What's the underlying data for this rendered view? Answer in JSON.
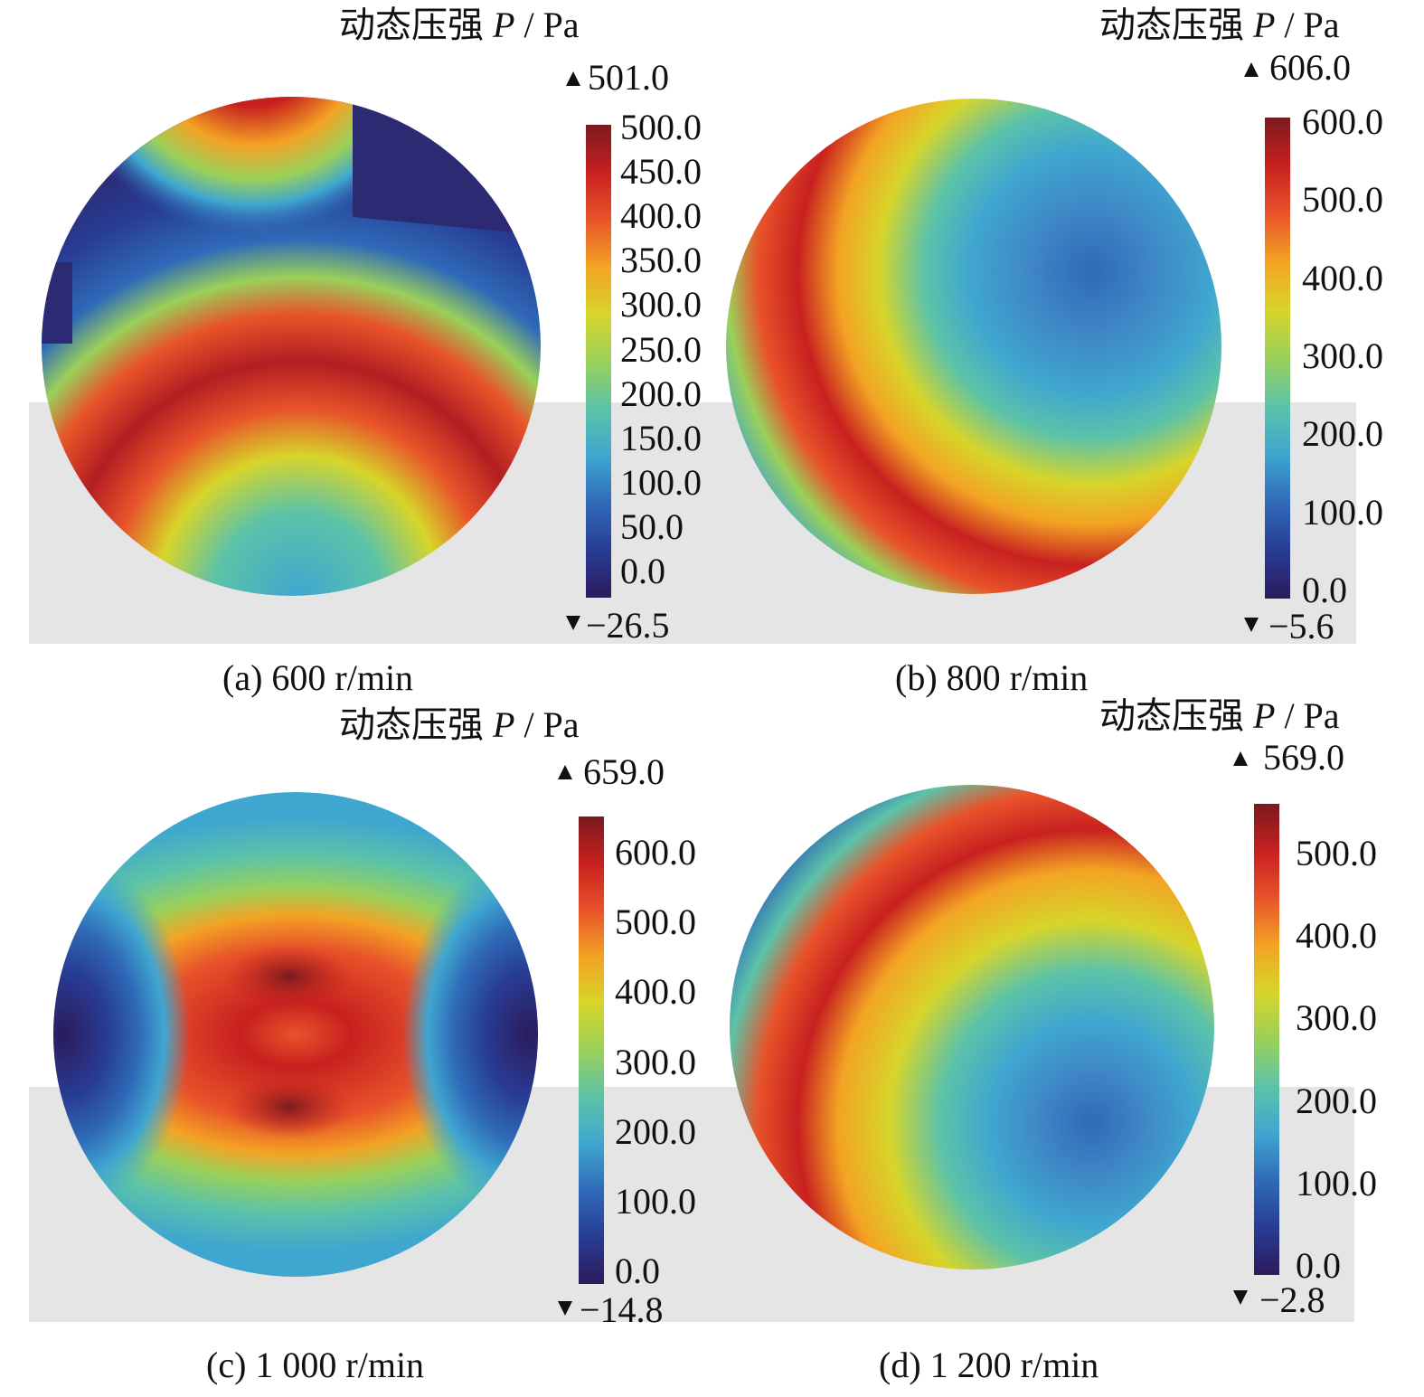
{
  "panels": [
    {
      "id": "a",
      "title": {
        "text": "动态压强 ",
        "var": "P",
        "unit": " / Pa"
      },
      "max_label": "501.0",
      "min_label": "−26.5",
      "ticks": [
        "500.0",
        "450.0",
        "400.0",
        "350.0",
        "300.0",
        "250.0",
        "200.0",
        "150.0",
        "100.0",
        "50.0",
        "0.0"
      ],
      "tick_values": [
        500,
        450,
        400,
        350,
        300,
        250,
        200,
        150,
        100,
        50,
        0
      ],
      "range": [
        -26.5,
        501.0
      ],
      "caption": "(a) 600 r/min"
    },
    {
      "id": "b",
      "title": {
        "text": "动态压强 ",
        "var": "P",
        "unit": " / Pa"
      },
      "max_label": "606.0",
      "min_label": "−5.6",
      "ticks": [
        "600.0",
        "500.0",
        "400.0",
        "300.0",
        "200.0",
        "100.0",
        "0.0"
      ],
      "tick_values": [
        600,
        500,
        400,
        300,
        200,
        100,
        0
      ],
      "range": [
        -5.6,
        606.0
      ],
      "caption": "(b) 800 r/min"
    },
    {
      "id": "c",
      "title": {
        "text": "动态压强 ",
        "var": "P",
        "unit": " / Pa"
      },
      "max_label": "659.0",
      "min_label": "−14.8",
      "ticks": [
        "600.0",
        "500.0",
        "400.0",
        "300.0",
        "200.0",
        "100.0",
        "0.0"
      ],
      "tick_values": [
        600,
        500,
        400,
        300,
        200,
        100,
        0
      ],
      "range": [
        -14.8,
        659.0
      ],
      "caption": "(c) 1 000 r/min"
    },
    {
      "id": "d",
      "title": {
        "text": "动态压强 ",
        "var": "P",
        "unit": " / Pa"
      },
      "max_label": "569.0",
      "min_label": "−2.8",
      "ticks": [
        "500.0",
        "400.0",
        "300.0",
        "200.0",
        "100.0",
        "0.0"
      ],
      "tick_values": [
        500,
        400,
        300,
        200,
        100,
        0
      ],
      "range": [
        -2.8,
        569.0
      ],
      "caption": "(d) 1 200 r/min"
    }
  ],
  "colormap": [
    "#2b1b5c",
    "#283c94",
    "#2f6ab8",
    "#3fa6d0",
    "#5cc3a8",
    "#9ad05a",
    "#d7d52a",
    "#f3a324",
    "#e8532a",
    "#c8201f",
    "#7a1a1f"
  ]
}
